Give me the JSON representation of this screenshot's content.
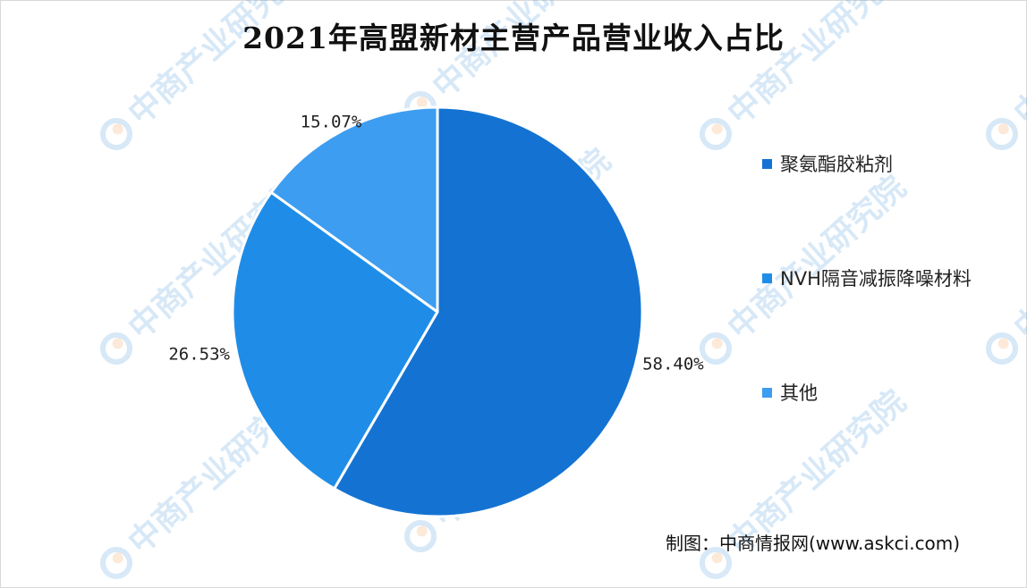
{
  "watermark_text": "中商产业研究院",
  "source_text": "制图：中商情报网(www.askci.com)",
  "chart_data": {
    "type": "pie",
    "title": "2021年高盟新材主营产品营业收入占比",
    "legend_position": "right",
    "slices": [
      {
        "label": "聚氨酯胶粘剂",
        "value": 58.4,
        "display": "58.40%",
        "color": "#1473d2"
      },
      {
        "label": "NVH隔音减振降噪材料",
        "value": 26.53,
        "display": "26.53%",
        "color": "#1f8de8"
      },
      {
        "label": "其他",
        "value": 15.07,
        "display": "15.07%",
        "color": "#3d9df0"
      }
    ]
  }
}
